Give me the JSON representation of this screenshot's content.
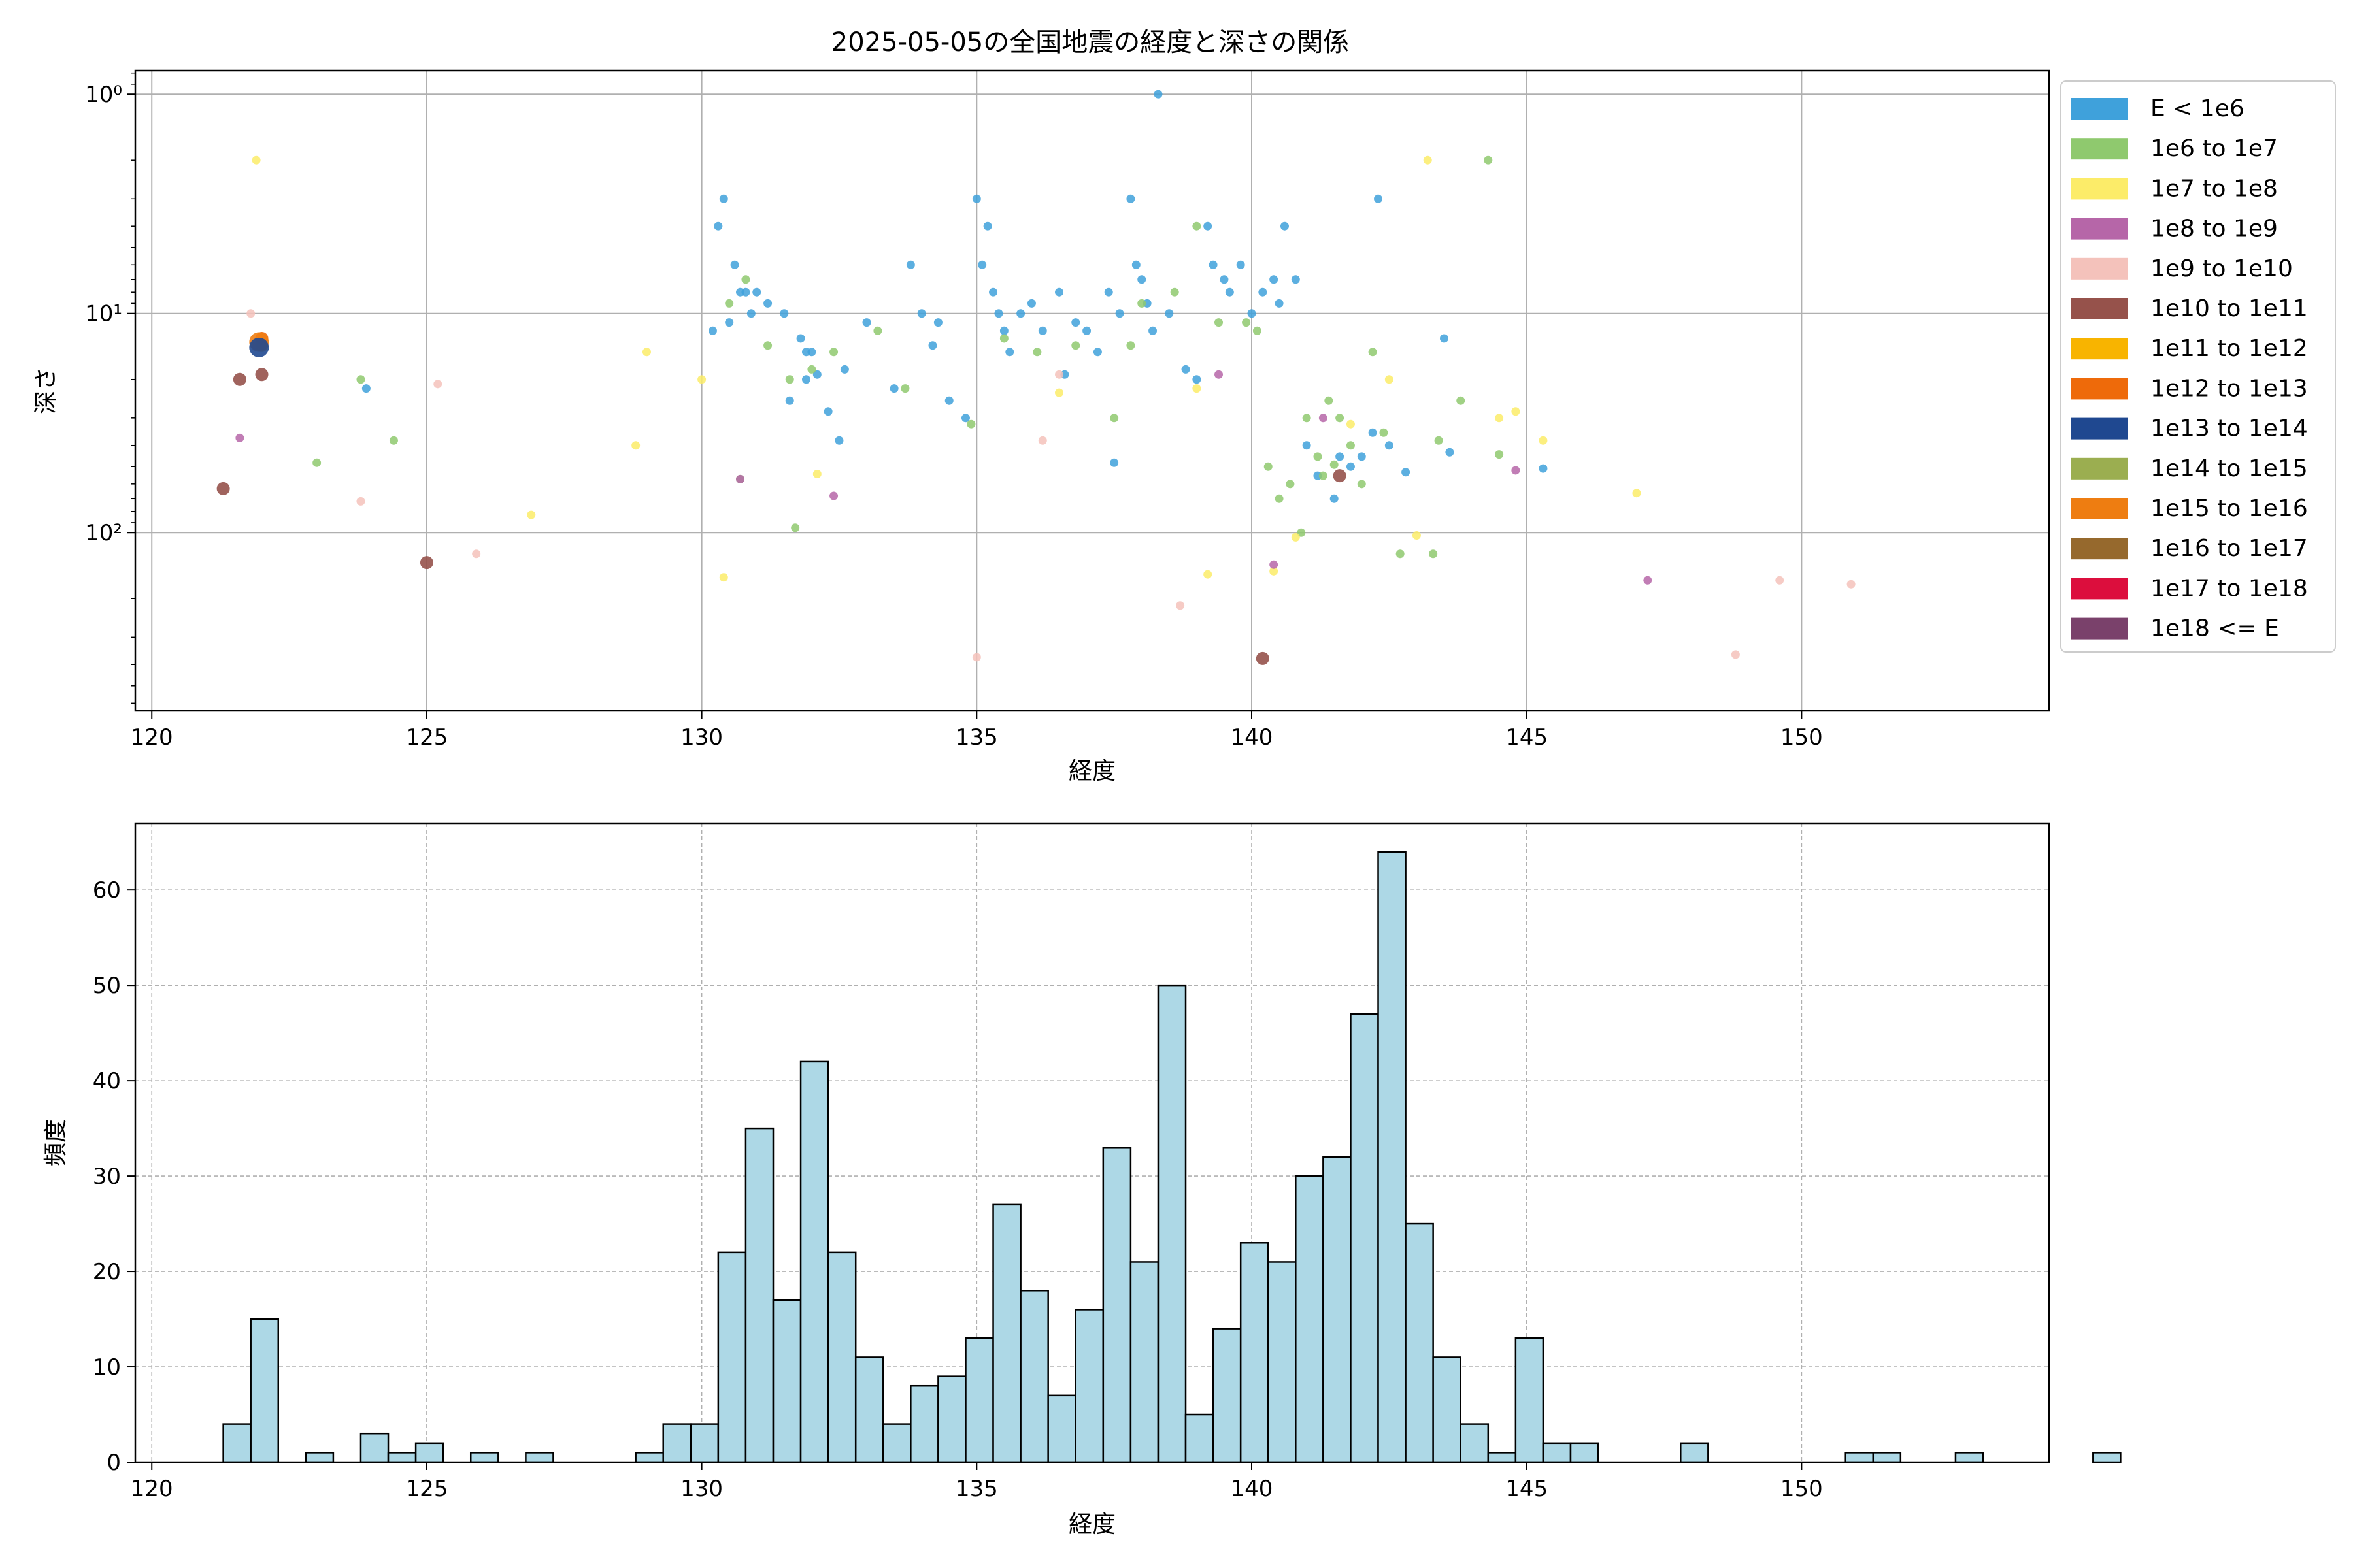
{
  "figure": {
    "title": "2025-05-05の全国地震の経度と深さの関係"
  },
  "chart_data": [
    {
      "type": "scatter",
      "xlabel": "経度",
      "ylabel": "深さ",
      "xlim": [
        119.7,
        154.5
      ],
      "ylim": [
        0.78,
        650
      ],
      "yscale": "log-inverted",
      "xticks": [
        120,
        125,
        130,
        135,
        140,
        145,
        150
      ],
      "xtick_labels": [
        "120",
        "125",
        "130",
        "135",
        "140",
        "145",
        "150"
      ],
      "yticks": [
        1,
        10,
        100
      ],
      "ytick_labels": [
        "10⁰",
        "10¹",
        "10²"
      ],
      "grid": true,
      "legend_position": "outside-right",
      "legend": [
        {
          "label": "E < 1e6",
          "color": "#3fa1db"
        },
        {
          "label": "1e6 to 1e7",
          "color": "#8fc96e"
        },
        {
          "label": "1e7 to 1e8",
          "color": "#fcec69"
        },
        {
          "label": "1e8 to 1e9",
          "color": "#b666a8"
        },
        {
          "label": "1e9 to 1e10",
          "color": "#f4c2bb"
        },
        {
          "label": "1e10 to 1e11",
          "color": "#96524b"
        },
        {
          "label": "1e11 to 1e12",
          "color": "#f8b400"
        },
        {
          "label": "1e12 to 1e13",
          "color": "#ee6a0a"
        },
        {
          "label": "1e13 to 1e14",
          "color": "#1f4890"
        },
        {
          "label": "1e14 to 1e15",
          "color": "#9bae50"
        },
        {
          "label": "1e15 to 1e16",
          "color": "#ee7d11"
        },
        {
          "label": "1e16 to 1e17",
          "color": "#96692d"
        },
        {
          "label": "1e17 to 1e18",
          "color": "#dc0e3d"
        },
        {
          "label": "1e18 <= E",
          "color": "#7a416b"
        }
      ],
      "points": [
        [
          130.4,
          3.0,
          0
        ],
        [
          130.6,
          6.0,
          0
        ],
        [
          130.8,
          8.0,
          0
        ],
        [
          131.0,
          8.0,
          0
        ],
        [
          130.9,
          10.0,
          0
        ],
        [
          130.3,
          4.0,
          0
        ],
        [
          130.5,
          11.0,
          0
        ],
        [
          131.2,
          9.0,
          0
        ],
        [
          131.5,
          10.0,
          0
        ],
        [
          131.8,
          13.0,
          0
        ],
        [
          132.0,
          15.0,
          0
        ],
        [
          131.9,
          20.0,
          0
        ],
        [
          132.3,
          28.0,
          0
        ],
        [
          132.5,
          38.0,
          0
        ],
        [
          131.6,
          25.0,
          0
        ],
        [
          132.1,
          19.0,
          0
        ],
        [
          130.2,
          12.0,
          0
        ],
        [
          130.7,
          8.0,
          0
        ],
        [
          133.0,
          11.0,
          0
        ],
        [
          133.5,
          22.0,
          0
        ],
        [
          133.8,
          6.0,
          0
        ],
        [
          134.0,
          10.0,
          0
        ],
        [
          134.2,
          14.0,
          0
        ],
        [
          134.5,
          25.0,
          0
        ],
        [
          134.8,
          30.0,
          0
        ],
        [
          135.0,
          3.0,
          0
        ],
        [
          135.1,
          6.0,
          0
        ],
        [
          135.2,
          4.0,
          0
        ],
        [
          135.3,
          8.0,
          0
        ],
        [
          135.4,
          10.0,
          0
        ],
        [
          135.5,
          12.0,
          0
        ],
        [
          135.6,
          15.0,
          0
        ],
        [
          135.8,
          10.0,
          0
        ],
        [
          136.0,
          9.0,
          0
        ],
        [
          136.2,
          12.0,
          0
        ],
        [
          136.5,
          8.0,
          0
        ],
        [
          136.8,
          11.0,
          0
        ],
        [
          137.0,
          12.0,
          0
        ],
        [
          137.2,
          15.0,
          0
        ],
        [
          137.4,
          8.0,
          0
        ],
        [
          137.5,
          48.0,
          0
        ],
        [
          137.6,
          10.0,
          0
        ],
        [
          137.8,
          3.0,
          0
        ],
        [
          137.9,
          6.0,
          0
        ],
        [
          138.0,
          7.0,
          0
        ],
        [
          138.1,
          9.0,
          0
        ],
        [
          138.2,
          12.0,
          0
        ],
        [
          138.3,
          1.0,
          0
        ],
        [
          138.5,
          10.0,
          0
        ],
        [
          138.8,
          18.0,
          0
        ],
        [
          139.0,
          20.0,
          0
        ],
        [
          139.2,
          4.0,
          0
        ],
        [
          139.3,
          6.0,
          0
        ],
        [
          139.5,
          7.0,
          0
        ],
        [
          139.6,
          8.0,
          0
        ],
        [
          139.8,
          6.0,
          0
        ],
        [
          140.0,
          10.0,
          0
        ],
        [
          140.2,
          8.0,
          0
        ],
        [
          140.4,
          7.0,
          0
        ],
        [
          140.5,
          9.0,
          0
        ],
        [
          140.6,
          4.0,
          0
        ],
        [
          140.8,
          7.0,
          0
        ],
        [
          141.0,
          40.0,
          0
        ],
        [
          141.2,
          55.0,
          0
        ],
        [
          141.5,
          70.0,
          0
        ],
        [
          141.6,
          45.0,
          0
        ],
        [
          141.8,
          50.0,
          0
        ],
        [
          142.0,
          45.0,
          0
        ],
        [
          142.2,
          35.0,
          0
        ],
        [
          142.3,
          3.0,
          0
        ],
        [
          142.5,
          40.0,
          0
        ],
        [
          142.8,
          53.0,
          0
        ],
        [
          143.5,
          13.0,
          0
        ],
        [
          143.6,
          43.0,
          0
        ],
        [
          145.3,
          51.0,
          0
        ],
        [
          123.9,
          22.0,
          0
        ],
        [
          131.9,
          15.0,
          0
        ],
        [
          132.6,
          18.0,
          0
        ],
        [
          134.3,
          11.0,
          0
        ],
        [
          136.6,
          19.0,
          0
        ],
        [
          130.5,
          9.0,
          1
        ],
        [
          130.8,
          7.0,
          1
        ],
        [
          131.2,
          14.0,
          1
        ],
        [
          131.6,
          20.0,
          1
        ],
        [
          131.7,
          95.0,
          1
        ],
        [
          132.0,
          18.0,
          1
        ],
        [
          132.4,
          15.0,
          1
        ],
        [
          133.2,
          12.0,
          1
        ],
        [
          133.7,
          22.0,
          1
        ],
        [
          134.9,
          32.0,
          1
        ],
        [
          135.5,
          13.0,
          1
        ],
        [
          136.1,
          15.0,
          1
        ],
        [
          136.8,
          14.0,
          1
        ],
        [
          137.5,
          30.0,
          1
        ],
        [
          137.8,
          14.0,
          1
        ],
        [
          138.0,
          9.0,
          1
        ],
        [
          138.6,
          8.0,
          1
        ],
        [
          139.0,
          4.0,
          1
        ],
        [
          139.4,
          11.0,
          1
        ],
        [
          139.9,
          11.0,
          1
        ],
        [
          140.1,
          12.0,
          1
        ],
        [
          140.3,
          50.0,
          1
        ],
        [
          140.5,
          70.0,
          1
        ],
        [
          140.7,
          60.0,
          1
        ],
        [
          140.9,
          100.0,
          1
        ],
        [
          141.0,
          30.0,
          1
        ],
        [
          141.2,
          45.0,
          1
        ],
        [
          141.3,
          55.0,
          1
        ],
        [
          141.4,
          25.0,
          1
        ],
        [
          141.6,
          30.0,
          1
        ],
        [
          141.8,
          40.0,
          1
        ],
        [
          142.0,
          60.0,
          1
        ],
        [
          142.2,
          15.0,
          1
        ],
        [
          142.4,
          35.0,
          1
        ],
        [
          142.7,
          125.0,
          1
        ],
        [
          143.3,
          125.0,
          1
        ],
        [
          143.4,
          38.0,
          1
        ],
        [
          143.8,
          25.0,
          1
        ],
        [
          144.3,
          2.0,
          1
        ],
        [
          144.5,
          44.0,
          1
        ],
        [
          123.8,
          20.0,
          1
        ],
        [
          124.4,
          38.0,
          1
        ],
        [
          123.0,
          48.0,
          1
        ],
        [
          130.7,
          57.0,
          1
        ],
        [
          141.5,
          49.0,
          1
        ],
        [
          130.0,
          20.0,
          2
        ],
        [
          129.0,
          15.0,
          2
        ],
        [
          128.8,
          40.0,
          2
        ],
        [
          126.9,
          83.0,
          2
        ],
        [
          130.4,
          160.0,
          2
        ],
        [
          121.9,
          2.0,
          2
        ],
        [
          143.2,
          2.0,
          2
        ],
        [
          139.0,
          22.0,
          2
        ],
        [
          139.2,
          155.0,
          2
        ],
        [
          140.4,
          150.0,
          2
        ],
        [
          140.8,
          105.0,
          2
        ],
        [
          141.8,
          32.0,
          2
        ],
        [
          142.5,
          20.0,
          2
        ],
        [
          143.0,
          103.0,
          2
        ],
        [
          144.5,
          30.0,
          2
        ],
        [
          144.8,
          28.0,
          2
        ],
        [
          145.3,
          38.0,
          2
        ],
        [
          147.0,
          66.0,
          2
        ],
        [
          132.1,
          54.0,
          2
        ],
        [
          136.5,
          23.0,
          2
        ],
        [
          121.6,
          37.0,
          3
        ],
        [
          130.7,
          57.0,
          3
        ],
        [
          132.4,
          68.0,
          3
        ],
        [
          140.4,
          140.0,
          3
        ],
        [
          141.3,
          30.0,
          3
        ],
        [
          144.8,
          52.0,
          3
        ],
        [
          147.2,
          165.0,
          3
        ],
        [
          139.4,
          19.0,
          3
        ],
        [
          121.8,
          10.0,
          4
        ],
        [
          123.8,
          72.0,
          4
        ],
        [
          125.2,
          21.0,
          4
        ],
        [
          125.9,
          125.0,
          4
        ],
        [
          135.0,
          370.0,
          4
        ],
        [
          136.2,
          38.0,
          4
        ],
        [
          136.5,
          19.0,
          4
        ],
        [
          138.7,
          215.0,
          4
        ],
        [
          148.8,
          360.0,
          4
        ],
        [
          149.6,
          165.0,
          4
        ],
        [
          150.9,
          172.0,
          4
        ],
        [
          121.9,
          14.0,
          4
        ],
        [
          121.3,
          63.0,
          5
        ],
        [
          121.6,
          20.0,
          5
        ],
        [
          122.0,
          19.0,
          5
        ],
        [
          125.0,
          137.0,
          5
        ],
        [
          140.2,
          375.0,
          5
        ],
        [
          141.6,
          55.0,
          5
        ],
        [
          122.0,
          14.0,
          6
        ],
        [
          122.0,
          13.0,
          7
        ],
        [
          121.95,
          13.5,
          10
        ],
        [
          121.95,
          14.3,
          8
        ]
      ]
    },
    {
      "type": "bar",
      "xlabel": "経度",
      "ylabel": "頻度",
      "xlim": [
        119.7,
        154.5
      ],
      "ylim": [
        0,
        67
      ],
      "xticks": [
        120,
        125,
        130,
        135,
        140,
        145,
        150
      ],
      "xtick_labels": [
        "120",
        "125",
        "130",
        "135",
        "140",
        "145",
        "150"
      ],
      "yticks": [
        0,
        10,
        20,
        30,
        40,
        50,
        60
      ],
      "ytick_labels": [
        "0",
        "10",
        "20",
        "30",
        "40",
        "50",
        "60"
      ],
      "grid": true,
      "bar_color": "#add8e6",
      "edge_color": "#000000",
      "bin_start": 121.3,
      "bin_width": 0.5,
      "values": [
        4,
        15,
        0,
        1,
        0,
        3,
        1,
        2,
        0,
        1,
        0,
        1,
        0,
        0,
        0,
        1,
        4,
        4,
        22,
        35,
        17,
        42,
        22,
        11,
        4,
        8,
        9,
        13,
        27,
        18,
        7,
        16,
        33,
        21,
        50,
        5,
        14,
        23,
        21,
        30,
        32,
        47,
        64,
        25,
        11,
        4,
        1,
        13,
        2,
        2,
        0,
        0,
        0,
        2,
        0,
        0,
        0,
        0,
        0,
        1,
        1,
        0,
        0,
        1,
        0,
        0,
        0,
        0,
        1
      ]
    }
  ]
}
